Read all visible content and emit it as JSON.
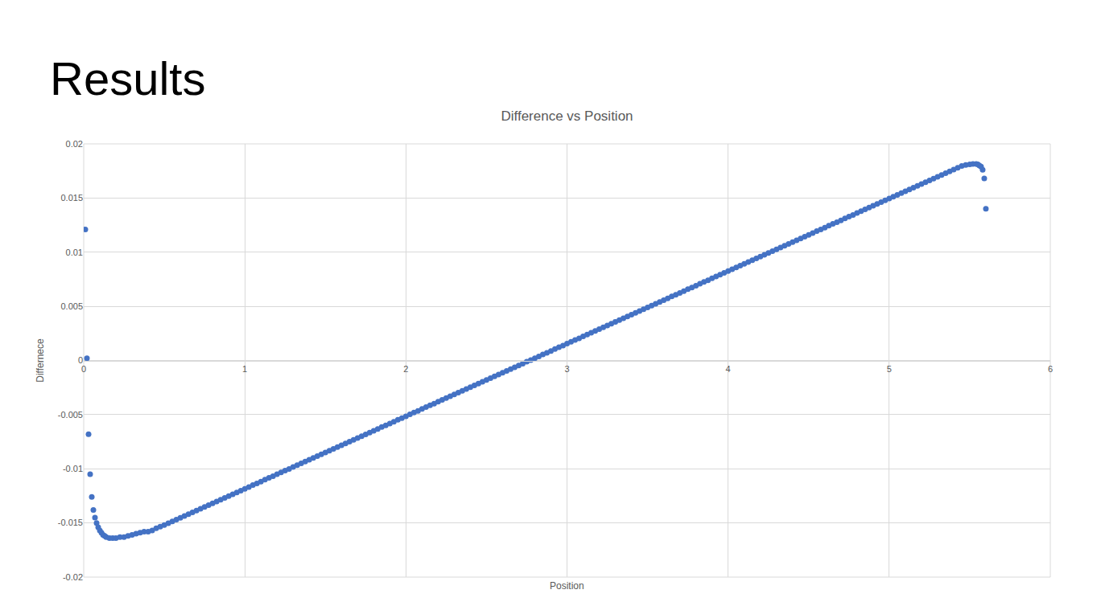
{
  "chart_data": {
    "type": "scatter",
    "title": "Results",
    "subtitle": "Difference vs Position",
    "x_label": "Position",
    "y_label": "Differnece",
    "color": "#4472c4",
    "marker": "circle",
    "grid": true,
    "xlim": [
      0,
      6
    ],
    "xticks": [
      0,
      1,
      2,
      3,
      4,
      5,
      6
    ],
    "ylim": [
      -0.02,
      0.02
    ],
    "yticks": [
      -0.02,
      -0.015,
      -0.01,
      -0.005,
      0,
      0.005,
      0.01,
      0.015,
      0.02
    ],
    "x": [
      0.01,
      0.02,
      0.03,
      0.04,
      0.05,
      0.06,
      0.07,
      0.08,
      0.09,
      0.1,
      0.11,
      0.12,
      0.13,
      0.14,
      0.16,
      0.18,
      0.2,
      0.225,
      0.25,
      0.275,
      0.3,
      0.325,
      0.35,
      0.375,
      0.4,
      0.425,
      0.45,
      0.475,
      0.5,
      0.525,
      0.55,
      0.575,
      0.6,
      0.625,
      0.65,
      0.675,
      0.7,
      0.725,
      0.75,
      0.775,
      0.8,
      0.825,
      0.85,
      0.875,
      0.9,
      0.925,
      0.95,
      0.975,
      1.0,
      1.025,
      1.05,
      1.075,
      1.1,
      1.125,
      1.15,
      1.175,
      1.2,
      1.225,
      1.25,
      1.275,
      1.3,
      1.325,
      1.35,
      1.375,
      1.4,
      1.425,
      1.45,
      1.475,
      1.5,
      1.525,
      1.55,
      1.575,
      1.6,
      1.625,
      1.65,
      1.675,
      1.7,
      1.725,
      1.75,
      1.775,
      1.8,
      1.825,
      1.85,
      1.875,
      1.9,
      1.925,
      1.95,
      1.975,
      2.0,
      2.025,
      2.05,
      2.075,
      2.1,
      2.125,
      2.15,
      2.175,
      2.2,
      2.225,
      2.25,
      2.275,
      2.3,
      2.325,
      2.35,
      2.375,
      2.4,
      2.425,
      2.45,
      2.475,
      2.5,
      2.525,
      2.55,
      2.575,
      2.6,
      2.625,
      2.65,
      2.675,
      2.7,
      2.725,
      2.75,
      2.775,
      2.8,
      2.825,
      2.85,
      2.875,
      2.9,
      2.925,
      2.95,
      2.975,
      3.0,
      3.025,
      3.05,
      3.075,
      3.1,
      3.125,
      3.15,
      3.175,
      3.2,
      3.225,
      3.25,
      3.275,
      3.3,
      3.325,
      3.35,
      3.375,
      3.4,
      3.425,
      3.45,
      3.475,
      3.5,
      3.525,
      3.55,
      3.575,
      3.6,
      3.625,
      3.65,
      3.675,
      3.7,
      3.725,
      3.75,
      3.775,
      3.8,
      3.825,
      3.85,
      3.875,
      3.9,
      3.925,
      3.95,
      3.975,
      4.0,
      4.025,
      4.05,
      4.075,
      4.1,
      4.125,
      4.15,
      4.175,
      4.2,
      4.225,
      4.25,
      4.275,
      4.3,
      4.325,
      4.35,
      4.375,
      4.4,
      4.425,
      4.45,
      4.475,
      4.5,
      4.525,
      4.55,
      4.575,
      4.6,
      4.625,
      4.65,
      4.675,
      4.7,
      4.725,
      4.75,
      4.775,
      4.8,
      4.825,
      4.85,
      4.875,
      4.9,
      4.925,
      4.95,
      4.975,
      5.0,
      5.025,
      5.05,
      5.075,
      5.1,
      5.125,
      5.15,
      5.175,
      5.2,
      5.225,
      5.25,
      5.275,
      5.3,
      5.325,
      5.35,
      5.375,
      5.4,
      5.425,
      5.45,
      5.475,
      5.5,
      5.52,
      5.54,
      5.55,
      5.56,
      5.57,
      5.58,
      5.59,
      5.6
    ],
    "values": [
      0.0121,
      0.0002,
      -0.0068,
      -0.0105,
      -0.0126,
      -0.0138,
      -0.0145,
      -0.015,
      -0.0154,
      -0.0157,
      -0.0159,
      -0.0161,
      -0.0162,
      -0.0163,
      -0.0164,
      -0.0164,
      -0.0164,
      -0.0163,
      -0.0163,
      -0.0162,
      -0.0161,
      -0.016,
      -0.0159,
      -0.0158,
      -0.0158,
      -0.0157,
      -0.0155,
      -0.01535,
      -0.0152,
      -0.01503,
      -0.01486,
      -0.0147,
      -0.01453,
      -0.01436,
      -0.01419,
      -0.01403,
      -0.01386,
      -0.01369,
      -0.01352,
      -0.01336,
      -0.01319,
      -0.01302,
      -0.01285,
      -0.01269,
      -0.01252,
      -0.01235,
      -0.01218,
      -0.01202,
      -0.01185,
      -0.01168,
      -0.01151,
      -0.01135,
      -0.01118,
      -0.01101,
      -0.01084,
      -0.01068,
      -0.01051,
      -0.01034,
      -0.01017,
      -0.01001,
      -0.00984,
      -0.00967,
      -0.0095,
      -0.00934,
      -0.00917,
      -0.009,
      -0.00883,
      -0.00867,
      -0.0085,
      -0.00833,
      -0.00816,
      -0.008,
      -0.00783,
      -0.00766,
      -0.00749,
      -0.00733,
      -0.00716,
      -0.00699,
      -0.00682,
      -0.00666,
      -0.00649,
      -0.00632,
      -0.00615,
      -0.00599,
      -0.00582,
      -0.00565,
      -0.00548,
      -0.00532,
      -0.00515,
      -0.00498,
      -0.00481,
      -0.00465,
      -0.00448,
      -0.00431,
      -0.00414,
      -0.00398,
      -0.00381,
      -0.00364,
      -0.00347,
      -0.00331,
      -0.00314,
      -0.00297,
      -0.0028,
      -0.00264,
      -0.00247,
      -0.0023,
      -0.00213,
      -0.00197,
      -0.0018,
      -0.00163,
      -0.00146,
      -0.0013,
      -0.00113,
      -0.00096,
      -0.00079,
      -0.00063,
      -0.00046,
      -0.00029,
      -0.00012,
      4e-05,
      0.00021,
      0.00038,
      0.00055,
      0.00071,
      0.00088,
      0.00105,
      0.00122,
      0.00138,
      0.00155,
      0.00172,
      0.00189,
      0.00205,
      0.00222,
      0.00239,
      0.00256,
      0.00272,
      0.00289,
      0.00306,
      0.00323,
      0.00339,
      0.00356,
      0.00373,
      0.0039,
      0.00406,
      0.00423,
      0.0044,
      0.00457,
      0.00473,
      0.0049,
      0.00507,
      0.00524,
      0.0054,
      0.00557,
      0.00574,
      0.00591,
      0.00607,
      0.00624,
      0.00641,
      0.00658,
      0.00674,
      0.00691,
      0.00708,
      0.00725,
      0.00741,
      0.00758,
      0.00775,
      0.00792,
      0.00808,
      0.00825,
      0.00842,
      0.00859,
      0.00875,
      0.00892,
      0.00909,
      0.00926,
      0.00942,
      0.00959,
      0.00976,
      0.00993,
      0.01009,
      0.01026,
      0.01043,
      0.0106,
      0.01076,
      0.01093,
      0.0111,
      0.01127,
      0.01143,
      0.0116,
      0.01177,
      0.01194,
      0.0121,
      0.01227,
      0.01244,
      0.01261,
      0.01277,
      0.01294,
      0.01311,
      0.01328,
      0.01344,
      0.01361,
      0.01378,
      0.01395,
      0.01411,
      0.01428,
      0.01445,
      0.01462,
      0.01478,
      0.01495,
      0.01512,
      0.01529,
      0.01545,
      0.01562,
      0.01579,
      0.01596,
      0.01612,
      0.01629,
      0.01646,
      0.01663,
      0.01679,
      0.01696,
      0.01713,
      0.0173,
      0.01746,
      0.01763,
      0.0178,
      0.01795,
      0.01805,
      0.0181,
      0.01815,
      0.01815,
      0.0181,
      0.018,
      0.0179,
      0.0176,
      0.0168,
      0.014
    ]
  }
}
